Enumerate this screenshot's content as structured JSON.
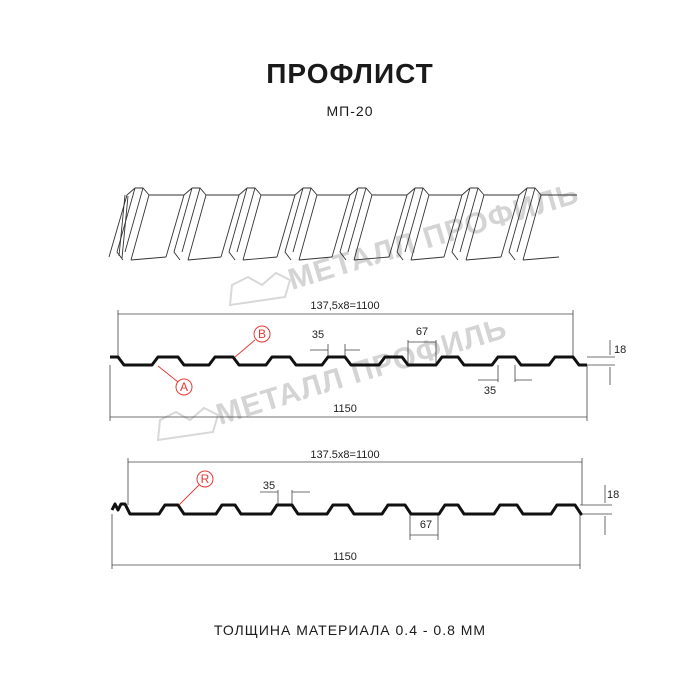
{
  "header": {
    "title": "ПРОФЛИСТ",
    "subtitle": "МП-20"
  },
  "watermark": "МЕТАЛЛ ПРОФИЛЬ",
  "profile_1": {
    "pitch_label": "137,5x8=1100",
    "width_label": "1150",
    "height_label": "18",
    "top_rib_label": "35",
    "bottom_label": "35",
    "valley_label": "67",
    "marker_a": "A",
    "marker_b": "B"
  },
  "profile_2": {
    "pitch_label": "137.5x8=1100",
    "width_label": "1150",
    "height_label": "18",
    "top_rib_label": "35",
    "valley_label": "67",
    "marker_r": "R"
  },
  "footer": {
    "thickness": "ТОЛЩИНА МАТЕРИАЛА 0.4 - 0.8 ММ"
  },
  "colors": {
    "profile": "#111111",
    "marker": "#e53935",
    "watermark": "#d4d4d4"
  }
}
